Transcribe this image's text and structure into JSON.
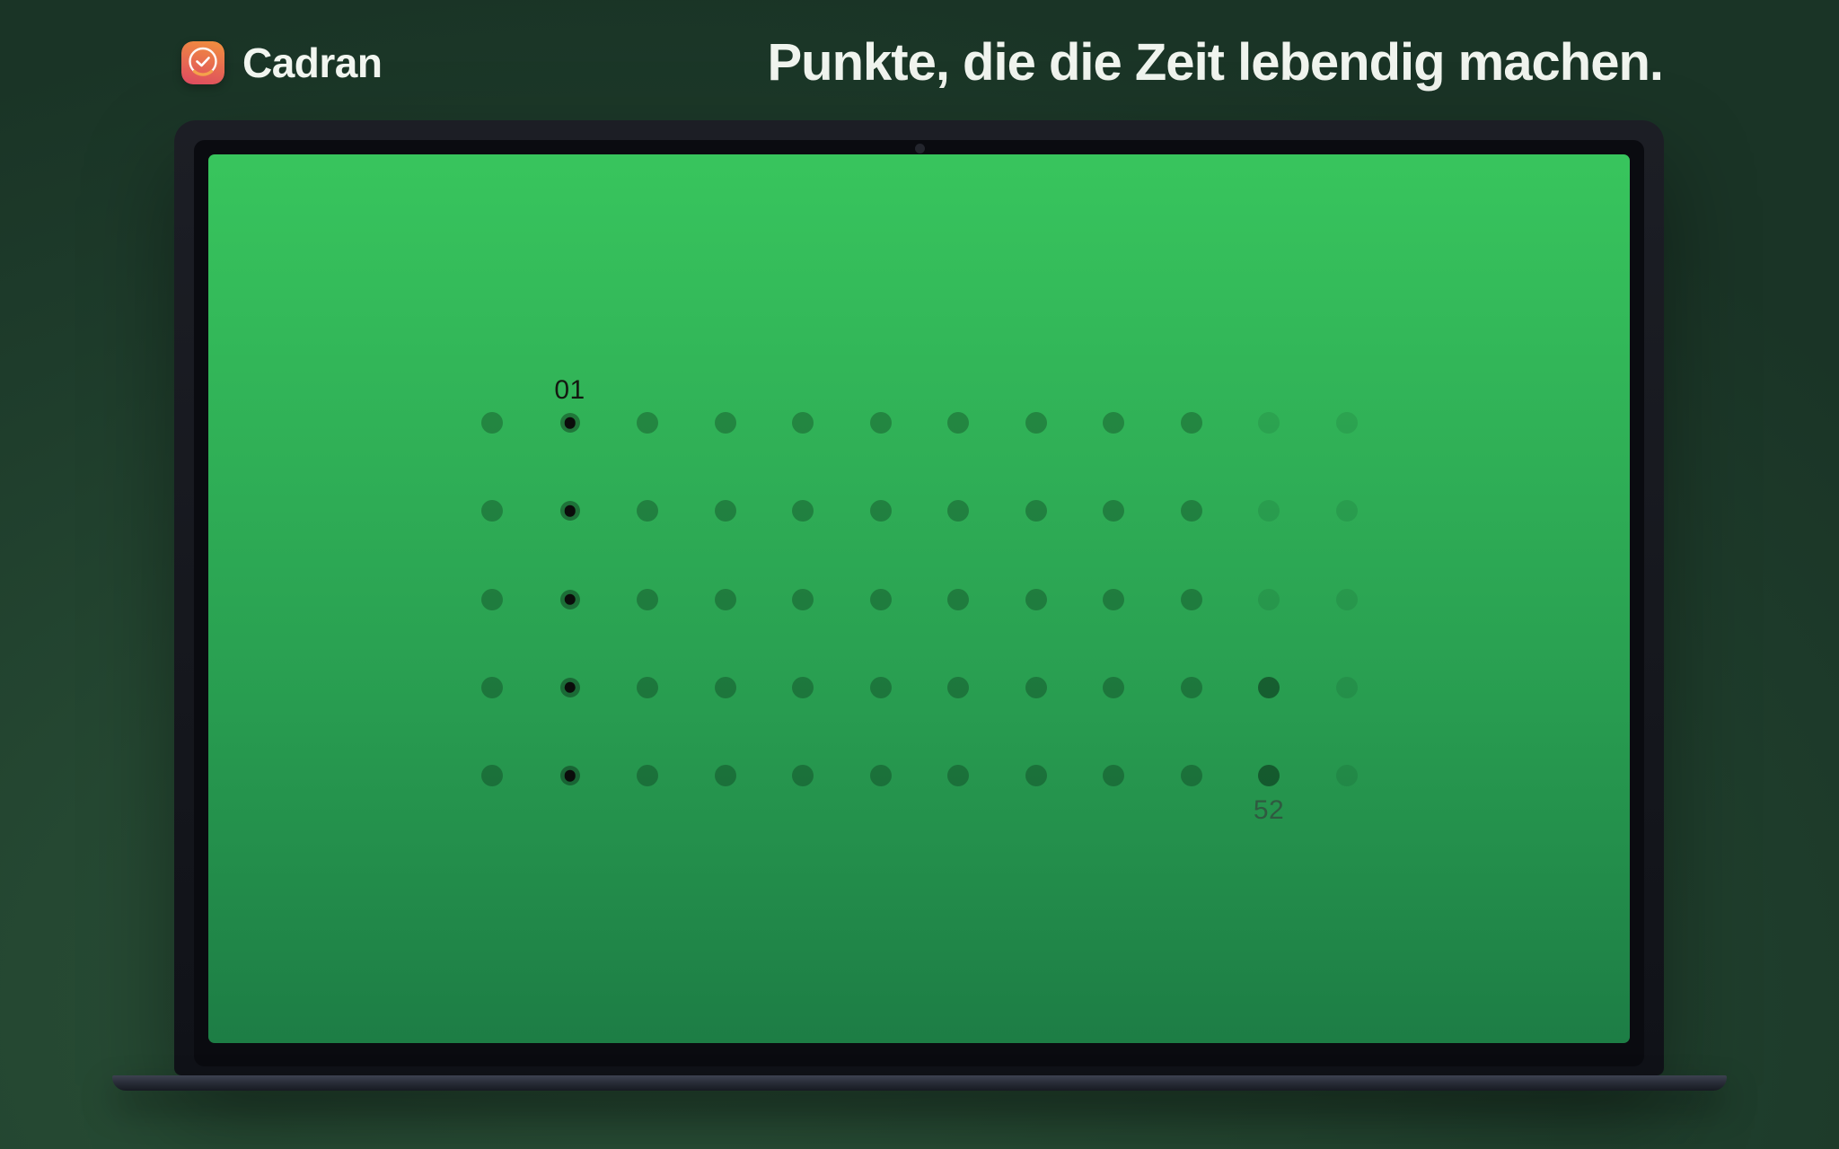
{
  "header": {
    "app_name": "Cadran",
    "tagline": "Punkte, die die Zeit lebendig machen.",
    "app_icon": "clock-app-icon"
  },
  "colors": {
    "page_bg_center": "#2b5239",
    "page_bg_edge": "#1a3426",
    "headline_text": "#f0f4ee",
    "screen_top": "#38c55d",
    "screen_bottom": "#1d7d45",
    "icon_gradient_start": "#f08b40",
    "icon_gradient_end": "#e04f60",
    "icon_arc": "#f5a34c",
    "label_start_color": "#141811",
    "label_end_color": "#2f5a40",
    "laptop_bezel": "#0a0b10",
    "laptop_base_top": "#3d4250"
  },
  "chart_data": {
    "type": "dot-grid",
    "description": "Screensaver showing the 52 weeks of a year as a 12x5 grid of dots on a green gradient screen; week 01 column dots carry black centers, trailing grid cells are dimmed placeholders",
    "columns": 12,
    "rows": 5,
    "states_legend": {
      "n": "normal week dot",
      "h": "highlighted dot with black center (week 01 column)",
      "s": "strong dark dot (latest weeks)",
      "d": "dim placeholder dot"
    },
    "dot_states": [
      [
        "n",
        "h",
        "n",
        "n",
        "n",
        "n",
        "n",
        "n",
        "n",
        "n",
        "d",
        "d"
      ],
      [
        "n",
        "h",
        "n",
        "n",
        "n",
        "n",
        "n",
        "n",
        "n",
        "n",
        "d",
        "d"
      ],
      [
        "n",
        "h",
        "n",
        "n",
        "n",
        "n",
        "n",
        "n",
        "n",
        "n",
        "d",
        "d"
      ],
      [
        "n",
        "h",
        "n",
        "n",
        "n",
        "n",
        "n",
        "n",
        "n",
        "n",
        "s",
        "d"
      ],
      [
        "n",
        "h",
        "n",
        "n",
        "n",
        "n",
        "n",
        "n",
        "n",
        "n",
        "s",
        "d"
      ]
    ],
    "labels": [
      {
        "text": "01",
        "row": 0,
        "col": 1,
        "position": "above"
      },
      {
        "text": "52",
        "row": 4,
        "col": 10,
        "position": "below"
      }
    ]
  }
}
